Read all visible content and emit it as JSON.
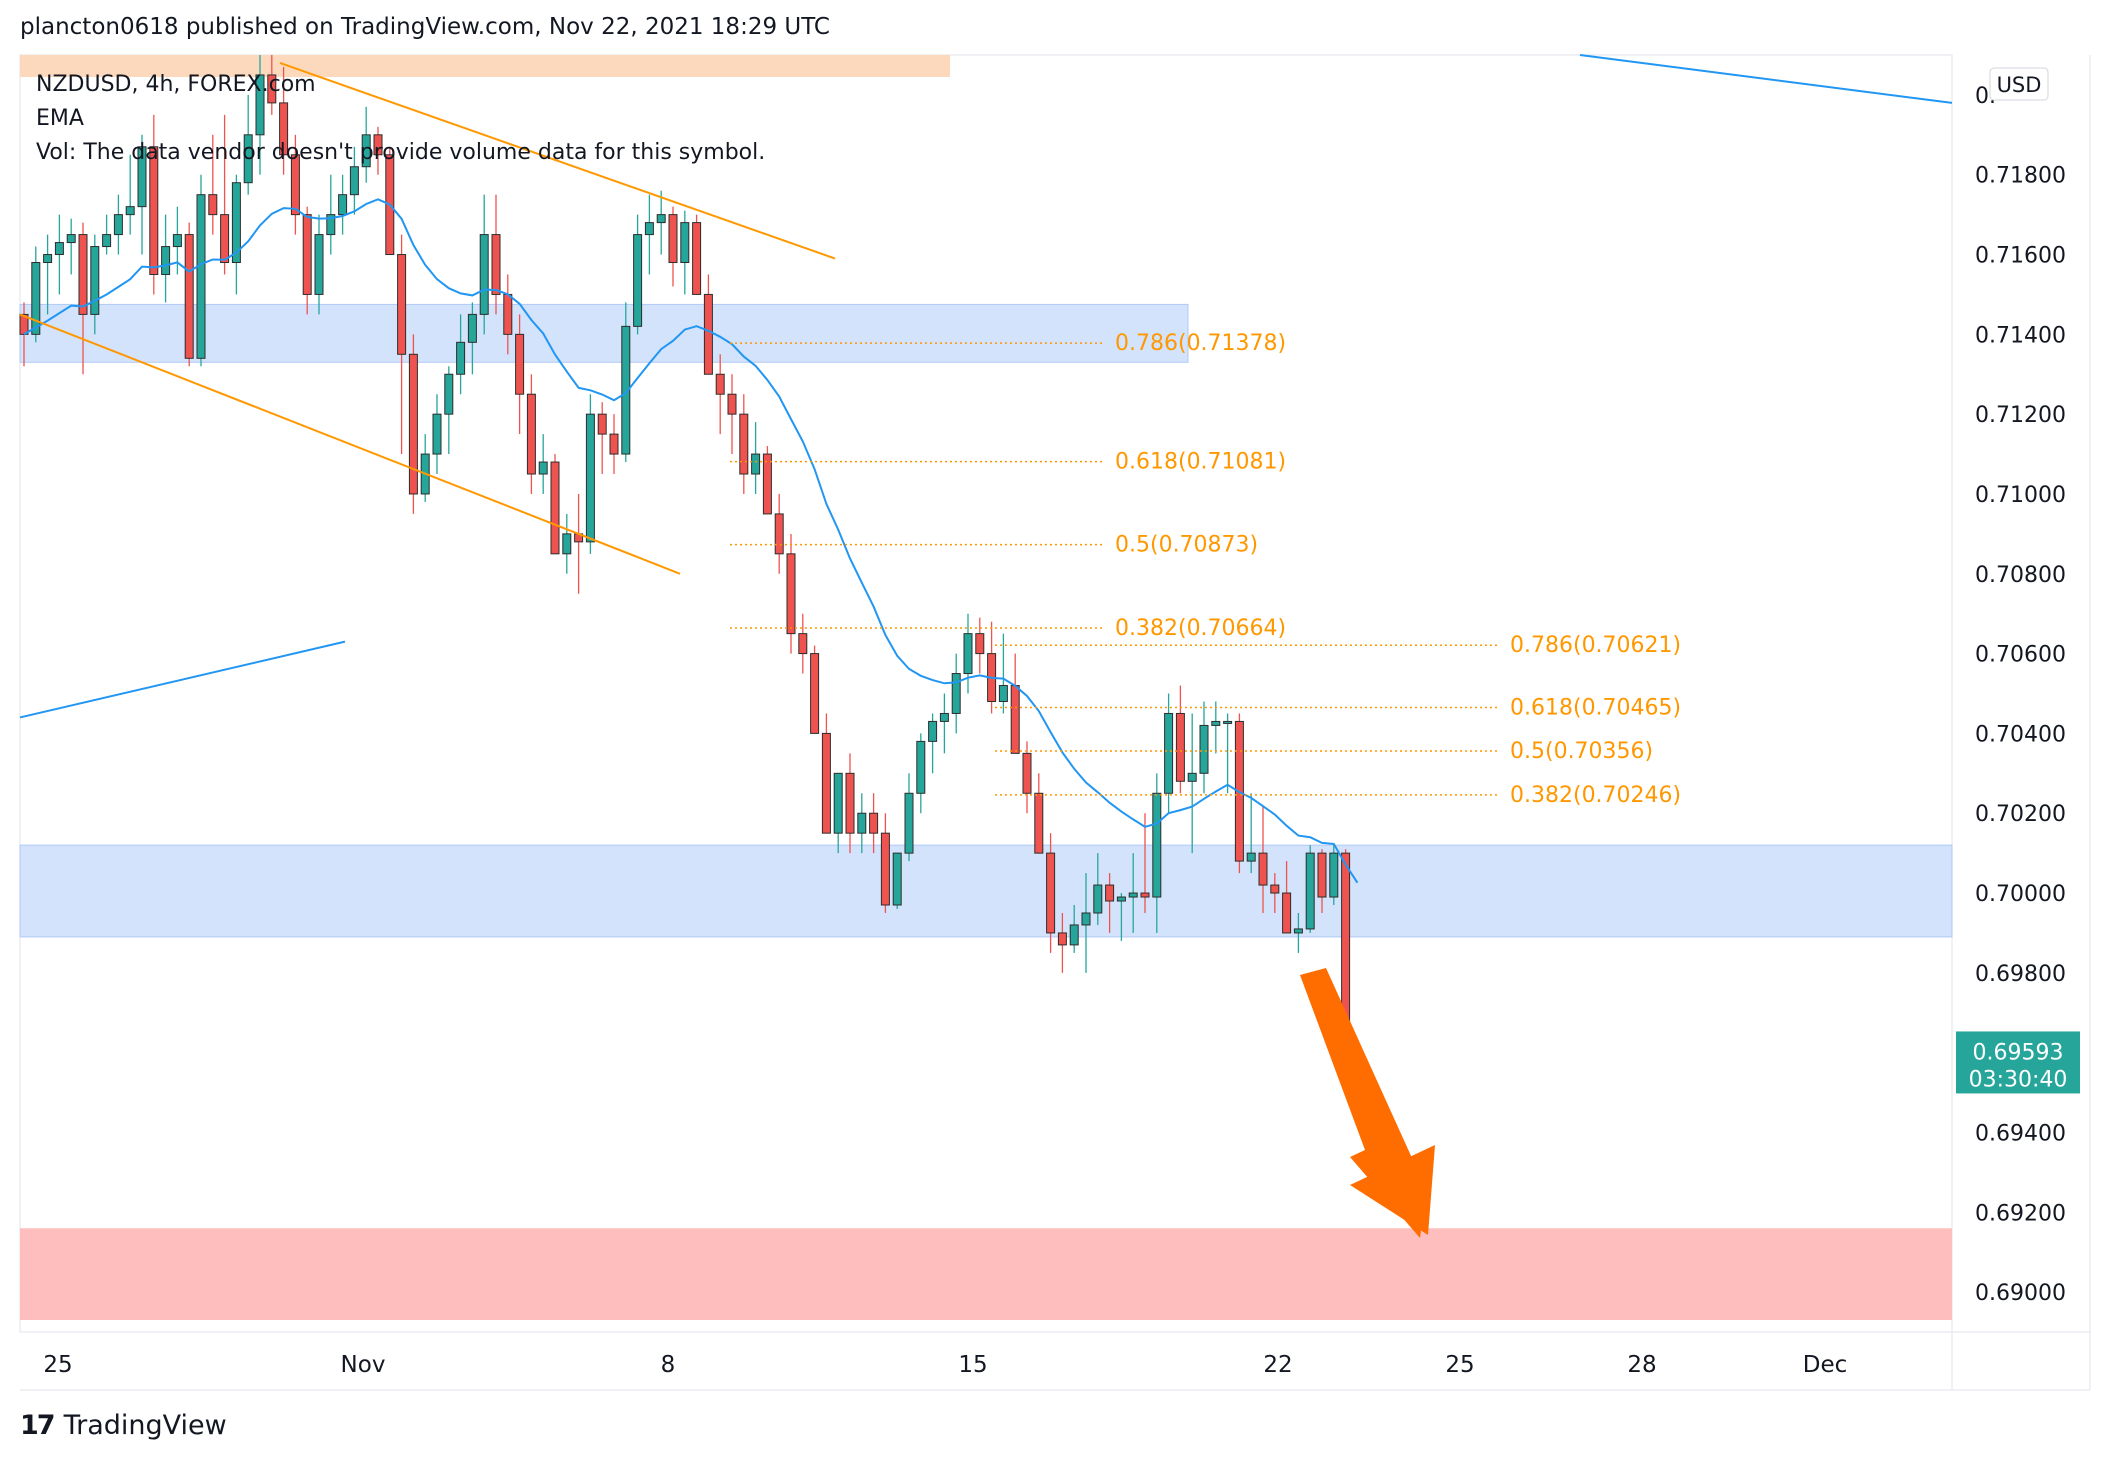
{
  "header": {
    "published_line": "plancton0618 published on TradingView.com, Nov 22, 2021 18:29 UTC"
  },
  "legend": {
    "symbol_line": "NZDUSD, 4h, FOREX.com",
    "indicator": "EMA",
    "volume_note": "Vol: The data vendor doesn't provide volume data for this symbol."
  },
  "footer": {
    "brand": "TradingView",
    "brand_mark": "17"
  },
  "price_axis": {
    "currency": "USD",
    "top_label_partial": "0.",
    "ticks": [
      "0.71800",
      "0.71600",
      "0.71400",
      "0.71200",
      "0.71000",
      "0.70800",
      "0.70600",
      "0.70400",
      "0.70200",
      "0.70000",
      "0.69800",
      "0.69400",
      "0.69200",
      "0.69000"
    ]
  },
  "time_axis": {
    "ticks": [
      "25",
      "Nov",
      "8",
      "15",
      "22",
      "25",
      "28",
      "Dec"
    ]
  },
  "last_price": {
    "price": "0.69593",
    "countdown": "03:30:40"
  },
  "fib_levels_1": [
    "0.786(0.71378)",
    "0.618(0.71081)",
    "0.5(0.70873)",
    "0.382(0.70664)"
  ],
  "fib_levels_2": [
    "0.786(0.70621)",
    "0.618(0.70465)",
    "0.5(0.70356)",
    "0.382(0.70246)"
  ],
  "colors": {
    "up": "#26a69a",
    "down": "#ef5350",
    "wick": "#3a3a3a",
    "ema": "#2196f3",
    "channel": "#ff9800",
    "fib": "#ff9800",
    "zone_blue": "#cfe0fb",
    "zone_red": "#ffbaba",
    "zone_orange": "#fcd9bd",
    "arrow": "#ff6d00",
    "last_price_bg": "#26a69a"
  },
  "chart_data": {
    "type": "candlestick",
    "symbol": "NZDUSD",
    "timeframe": "4h",
    "ylim": [
      0.689,
      0.721
    ],
    "candles_ohlc": [
      [
        0.7145,
        0.7148,
        0.7132,
        0.714
      ],
      [
        0.714,
        0.7162,
        0.7138,
        0.7158
      ],
      [
        0.7158,
        0.7165,
        0.7145,
        0.716
      ],
      [
        0.716,
        0.717,
        0.715,
        0.7163
      ],
      [
        0.7163,
        0.7169,
        0.7155,
        0.7165
      ],
      [
        0.7165,
        0.7168,
        0.713,
        0.7145
      ],
      [
        0.7145,
        0.7165,
        0.714,
        0.7162
      ],
      [
        0.7162,
        0.717,
        0.716,
        0.7165
      ],
      [
        0.7165,
        0.7175,
        0.716,
        0.717
      ],
      [
        0.717,
        0.7185,
        0.7165,
        0.7172
      ],
      [
        0.7172,
        0.719,
        0.716,
        0.7187
      ],
      [
        0.7187,
        0.7195,
        0.715,
        0.7155
      ],
      [
        0.7155,
        0.717,
        0.7148,
        0.7162
      ],
      [
        0.7162,
        0.7172,
        0.7155,
        0.7165
      ],
      [
        0.7165,
        0.7168,
        0.7132,
        0.7134
      ],
      [
        0.7134,
        0.718,
        0.7132,
        0.7175
      ],
      [
        0.7175,
        0.719,
        0.7165,
        0.717
      ],
      [
        0.717,
        0.7195,
        0.7155,
        0.7158
      ],
      [
        0.7158,
        0.718,
        0.715,
        0.7178
      ],
      [
        0.7178,
        0.72,
        0.7175,
        0.719
      ],
      [
        0.719,
        0.721,
        0.718,
        0.7205
      ],
      [
        0.7205,
        0.721,
        0.7195,
        0.7198
      ],
      [
        0.7198,
        0.7207,
        0.718,
        0.7185
      ],
      [
        0.7185,
        0.719,
        0.7165,
        0.717
      ],
      [
        0.717,
        0.7172,
        0.7145,
        0.715
      ],
      [
        0.715,
        0.717,
        0.7145,
        0.7165
      ],
      [
        0.7165,
        0.718,
        0.716,
        0.717
      ],
      [
        0.717,
        0.718,
        0.7165,
        0.7175
      ],
      [
        0.7175,
        0.7187,
        0.717,
        0.7182
      ],
      [
        0.7182,
        0.7197,
        0.7178,
        0.719
      ],
      [
        0.719,
        0.7192,
        0.718,
        0.7185
      ],
      [
        0.7185,
        0.7187,
        0.717,
        0.716
      ],
      [
        0.716,
        0.7165,
        0.711,
        0.7135
      ],
      [
        0.7135,
        0.714,
        0.7095,
        0.71
      ],
      [
        0.71,
        0.7115,
        0.7098,
        0.711
      ],
      [
        0.711,
        0.7125,
        0.7105,
        0.712
      ],
      [
        0.712,
        0.7132,
        0.711,
        0.713
      ],
      [
        0.713,
        0.7145,
        0.7125,
        0.7138
      ],
      [
        0.7138,
        0.7148,
        0.713,
        0.7145
      ],
      [
        0.7145,
        0.7175,
        0.714,
        0.7165
      ],
      [
        0.7165,
        0.7175,
        0.7145,
        0.715
      ],
      [
        0.715,
        0.7155,
        0.7135,
        0.714
      ],
      [
        0.714,
        0.7145,
        0.7115,
        0.7125
      ],
      [
        0.7125,
        0.713,
        0.71,
        0.7105
      ],
      [
        0.7105,
        0.7115,
        0.71,
        0.7108
      ],
      [
        0.7108,
        0.711,
        0.709,
        0.7085
      ],
      [
        0.7085,
        0.7095,
        0.708,
        0.709
      ],
      [
        0.709,
        0.71,
        0.7075,
        0.7088
      ],
      [
        0.7088,
        0.7125,
        0.7085,
        0.712
      ],
      [
        0.712,
        0.7123,
        0.7105,
        0.7115
      ],
      [
        0.7115,
        0.712,
        0.7105,
        0.711
      ],
      [
        0.711,
        0.7148,
        0.7108,
        0.7142
      ],
      [
        0.7142,
        0.717,
        0.714,
        0.7165
      ],
      [
        0.7165,
        0.7175,
        0.7155,
        0.7168
      ],
      [
        0.7168,
        0.7176,
        0.716,
        0.717
      ],
      [
        0.717,
        0.7172,
        0.7152,
        0.7158
      ],
      [
        0.7158,
        0.7171,
        0.715,
        0.7168
      ],
      [
        0.7168,
        0.717,
        0.7155,
        0.715
      ],
      [
        0.715,
        0.7155,
        0.7135,
        0.713
      ],
      [
        0.713,
        0.7135,
        0.7115,
        0.7125
      ],
      [
        0.7125,
        0.713,
        0.711,
        0.712
      ],
      [
        0.712,
        0.7125,
        0.71,
        0.7105
      ],
      [
        0.7105,
        0.7118,
        0.71,
        0.711
      ],
      [
        0.711,
        0.7112,
        0.7095,
        0.7095
      ],
      [
        0.7095,
        0.71,
        0.708,
        0.7085
      ],
      [
        0.7085,
        0.709,
        0.706,
        0.7065
      ],
      [
        0.7065,
        0.707,
        0.7055,
        0.706
      ],
      [
        0.706,
        0.7062,
        0.704,
        0.704
      ],
      [
        0.704,
        0.7045,
        0.7015,
        0.7015
      ],
      [
        0.7015,
        0.703,
        0.701,
        0.703
      ],
      [
        0.703,
        0.7035,
        0.701,
        0.7015
      ],
      [
        0.7015,
        0.7025,
        0.701,
        0.702
      ],
      [
        0.702,
        0.7025,
        0.701,
        0.7015
      ],
      [
        0.7015,
        0.702,
        0.6995,
        0.6997
      ],
      [
        0.6997,
        0.701,
        0.6996,
        0.701
      ],
      [
        0.701,
        0.703,
        0.7008,
        0.7025
      ],
      [
        0.7025,
        0.704,
        0.702,
        0.7038
      ],
      [
        0.7038,
        0.7045,
        0.703,
        0.7043
      ],
      [
        0.7043,
        0.705,
        0.7035,
        0.7045
      ],
      [
        0.7045,
        0.706,
        0.704,
        0.7055
      ],
      [
        0.7055,
        0.707,
        0.705,
        0.7065
      ],
      [
        0.7065,
        0.7069,
        0.7055,
        0.706
      ],
      [
        0.706,
        0.7068,
        0.7045,
        0.7048
      ],
      [
        0.7048,
        0.7065,
        0.7045,
        0.7052
      ],
      [
        0.7052,
        0.706,
        0.704,
        0.7035
      ],
      [
        0.7035,
        0.7038,
        0.702,
        0.7025
      ],
      [
        0.7025,
        0.703,
        0.701,
        0.701
      ],
      [
        0.701,
        0.7015,
        0.6985,
        0.699
      ],
      [
        0.699,
        0.6995,
        0.698,
        0.6987
      ],
      [
        0.6987,
        0.6997,
        0.6985,
        0.6992
      ],
      [
        0.6992,
        0.7005,
        0.698,
        0.6995
      ],
      [
        0.6995,
        0.701,
        0.6992,
        0.7002
      ],
      [
        0.7002,
        0.7005,
        0.699,
        0.6998
      ],
      [
        0.6998,
        0.7,
        0.6988,
        0.6999
      ],
      [
        0.6999,
        0.701,
        0.699,
        0.7
      ],
      [
        0.7,
        0.702,
        0.6995,
        0.6999
      ],
      [
        0.6999,
        0.703,
        0.699,
        0.7025
      ],
      [
        0.7025,
        0.705,
        0.702,
        0.7045
      ],
      [
        0.7045,
        0.7052,
        0.7025,
        0.7028
      ],
      [
        0.7028,
        0.7045,
        0.701,
        0.703
      ],
      [
        0.703,
        0.7048,
        0.7025,
        0.7042
      ],
      [
        0.7042,
        0.7048,
        0.7035,
        0.7043
      ],
      [
        0.7043,
        0.7045,
        0.7025,
        0.7043
      ],
      [
        0.7043,
        0.7045,
        0.7005,
        0.7008
      ],
      [
        0.7008,
        0.7025,
        0.7005,
        0.701
      ],
      [
        0.701,
        0.7022,
        0.6995,
        0.7002
      ],
      [
        0.7002,
        0.7005,
        0.6995,
        0.7
      ],
      [
        0.7,
        0.7008,
        0.699,
        0.699
      ],
      [
        0.699,
        0.6995,
        0.6985,
        0.6991
      ],
      [
        0.6991,
        0.7012,
        0.699,
        0.701
      ],
      [
        0.701,
        0.7011,
        0.6995,
        0.6999
      ],
      [
        0.6999,
        0.7012,
        0.6997,
        0.701
      ],
      [
        0.701,
        0.7011,
        0.6956,
        0.6958
      ],
      [
        0.6958,
        0.6962,
        0.6955,
        0.69593
      ]
    ],
    "x_span_candles": 160
  }
}
